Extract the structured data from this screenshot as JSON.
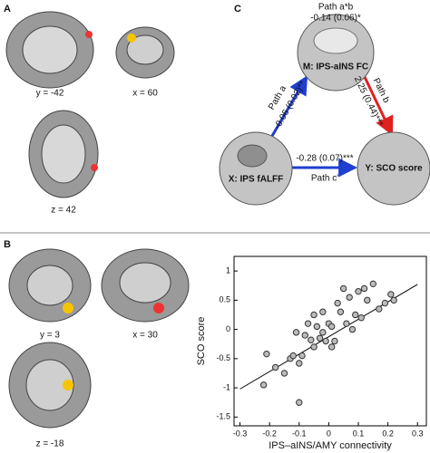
{
  "panels": {
    "a": "A",
    "b": "B",
    "c": "C"
  },
  "slices_a": [
    "y = -42",
    "x = 60",
    "z = 42"
  ],
  "slices_b": [
    "y = 3",
    "x = 30",
    "z = -18"
  ],
  "mediation": {
    "path_ab": "Path a*b",
    "path_ab_value": "-0.14 (0.06)*",
    "m": "M: IPS-aINS FC",
    "x": "X: IPS fALFF",
    "y": "Y: SCO score",
    "path_a": "Path a",
    "path_a_value": "-0.06 (0.02)**",
    "path_b": "Path b",
    "path_b_value": "2.25 (0.44)***",
    "path_c": "Path c'",
    "path_c_value": "-0.28 (0.07)***"
  },
  "chart_data": {
    "type": "scatter",
    "xlabel": "IPS–aINS/AMY connectivity",
    "ylabel": "SCO score",
    "xlim": [
      -0.32,
      0.33
    ],
    "ylim": [
      -1.65,
      1.25
    ],
    "xticks": [
      -0.3,
      -0.2,
      -0.1,
      0,
      0.1,
      0.2,
      0.3
    ],
    "yticks": [
      -1.5,
      -1,
      -0.5,
      0,
      0.5,
      1
    ],
    "x": [
      -0.22,
      -0.21,
      -0.18,
      -0.15,
      -0.13,
      -0.12,
      -0.11,
      -0.1,
      -0.1,
      -0.09,
      -0.08,
      -0.07,
      -0.06,
      -0.05,
      -0.05,
      -0.04,
      -0.03,
      -0.02,
      -0.02,
      -0.01,
      0,
      0.01,
      0.01,
      0.02,
      0.03,
      0.04,
      0.05,
      0.06,
      0.07,
      0.08,
      0.09,
      0.1,
      0.11,
      0.12,
      0.13,
      0.15,
      0.17,
      0.19,
      0.21,
      0.22
    ],
    "y": [
      -0.95,
      -0.42,
      -0.65,
      -0.75,
      -0.5,
      -0.45,
      -0.05,
      -1.25,
      -0.58,
      -0.45,
      -0.1,
      0.1,
      -0.18,
      0.25,
      -0.3,
      0.05,
      -0.15,
      0.3,
      -0.05,
      -0.2,
      0.1,
      -0.3,
      0.05,
      -0.2,
      0.45,
      0.3,
      0.7,
      0.1,
      0.55,
      0,
      0.25,
      0.65,
      0.2,
      0.7,
      0.5,
      0.78,
      0.35,
      0.45,
      0.6,
      0.5
    ],
    "fit_line": {
      "x": [
        -0.3,
        0.3
      ],
      "y": [
        -1.02,
        0.77
      ]
    }
  }
}
